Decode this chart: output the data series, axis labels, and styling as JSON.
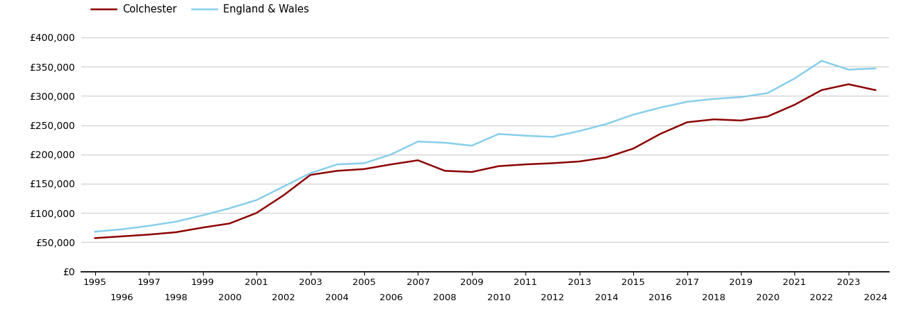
{
  "colchester_years": [
    1995,
    1996,
    1997,
    1998,
    1999,
    2000,
    2001,
    2002,
    2003,
    2004,
    2005,
    2006,
    2007,
    2008,
    2009,
    2010,
    2011,
    2012,
    2013,
    2014,
    2015,
    2016,
    2017,
    2018,
    2019,
    2020,
    2021,
    2022,
    2023,
    2024
  ],
  "colchester_values": [
    57000,
    60000,
    63000,
    67000,
    75000,
    82000,
    100000,
    130000,
    165000,
    172000,
    175000,
    183000,
    190000,
    172000,
    170000,
    180000,
    183000,
    185000,
    188000,
    195000,
    210000,
    235000,
    255000,
    260000,
    258000,
    265000,
    285000,
    310000,
    320000,
    310000
  ],
  "england_wales_years": [
    1995,
    1996,
    1997,
    1998,
    1999,
    2000,
    2001,
    2002,
    2003,
    2004,
    2005,
    2006,
    2007,
    2008,
    2009,
    2010,
    2011,
    2012,
    2013,
    2014,
    2015,
    2016,
    2017,
    2018,
    2019,
    2020,
    2021,
    2022,
    2023,
    2024
  ],
  "england_wales_values": [
    68000,
    72000,
    78000,
    85000,
    96000,
    108000,
    122000,
    145000,
    168000,
    183000,
    185000,
    200000,
    222000,
    220000,
    215000,
    235000,
    232000,
    230000,
    240000,
    252000,
    268000,
    280000,
    290000,
    295000,
    298000,
    305000,
    330000,
    360000,
    345000,
    347000
  ],
  "colchester_color": "#8B0000",
  "england_wales_color": "#87CEEB",
  "background_color": "#ffffff",
  "grid_color": "#cccccc",
  "ylim": [
    0,
    400000
  ],
  "ytick_values": [
    0,
    50000,
    100000,
    150000,
    200000,
    250000,
    300000,
    350000,
    400000
  ],
  "xtick_odd": [
    1995,
    1997,
    1999,
    2001,
    2003,
    2005,
    2007,
    2009,
    2011,
    2013,
    2015,
    2017,
    2019,
    2021,
    2023
  ],
  "xtick_even": [
    1996,
    1998,
    2000,
    2002,
    2004,
    2006,
    2008,
    2010,
    2012,
    2014,
    2016,
    2018,
    2020,
    2022,
    2024
  ],
  "legend_colchester": "Colchester",
  "legend_england_wales": "England & Wales",
  "line_width": 1.8,
  "xlim_left": 1994.5,
  "xlim_right": 2024.5
}
